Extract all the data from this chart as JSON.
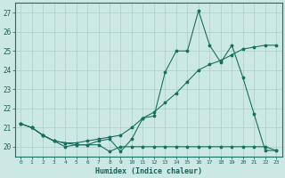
{
  "xlabel": "Humidex (Indice chaleur)",
  "bg_color": "#cce8e4",
  "grid_color": "#aacfca",
  "line_color": "#1a7060",
  "x_min": -0.5,
  "x_max": 23.5,
  "y_min": 19.5,
  "y_max": 27.5,
  "y_ticks": [
    20,
    21,
    22,
    23,
    24,
    25,
    26,
    27
  ],
  "x_ticks": [
    0,
    1,
    2,
    3,
    4,
    5,
    6,
    7,
    8,
    9,
    10,
    11,
    12,
    13,
    14,
    15,
    16,
    17,
    18,
    19,
    20,
    21,
    22,
    23
  ],
  "series_flat_x": [
    0,
    1,
    2,
    3,
    4,
    5,
    6,
    7,
    8,
    9,
    10,
    11,
    12,
    13,
    14,
    15,
    16,
    17,
    18,
    19,
    20,
    21,
    22,
    23
  ],
  "series_flat_y": [
    21.2,
    21.0,
    20.6,
    20.3,
    20.0,
    20.1,
    20.1,
    20.1,
    19.75,
    20.0,
    20.0,
    20.0,
    20.0,
    20.0,
    20.0,
    20.0,
    20.0,
    20.0,
    20.0,
    20.0,
    20.0,
    20.0,
    20.0,
    19.8
  ],
  "series_diag_x": [
    0,
    1,
    2,
    3,
    4,
    5,
    6,
    7,
    8,
    9,
    10,
    11,
    12,
    13,
    14,
    15,
    16,
    17,
    18,
    19,
    20,
    21,
    22,
    23
  ],
  "series_diag_y": [
    21.2,
    21.0,
    20.6,
    20.3,
    20.2,
    20.2,
    20.3,
    20.4,
    20.5,
    20.6,
    21.0,
    21.5,
    21.8,
    22.3,
    22.8,
    23.4,
    24.0,
    24.3,
    24.5,
    24.8,
    25.1,
    25.2,
    25.3,
    25.3
  ],
  "series_zigzag_x": [
    0,
    1,
    2,
    3,
    4,
    5,
    6,
    7,
    8,
    9,
    10,
    11,
    12,
    13,
    14,
    15,
    16,
    17,
    18,
    19,
    20,
    21,
    22,
    23
  ],
  "series_zigzag_y": [
    21.2,
    21.0,
    20.6,
    20.3,
    20.2,
    20.1,
    20.1,
    20.3,
    20.4,
    19.75,
    20.4,
    21.5,
    21.6,
    23.9,
    25.0,
    25.0,
    27.1,
    25.3,
    24.4,
    25.3,
    23.6,
    21.7,
    19.8,
    19.8
  ]
}
